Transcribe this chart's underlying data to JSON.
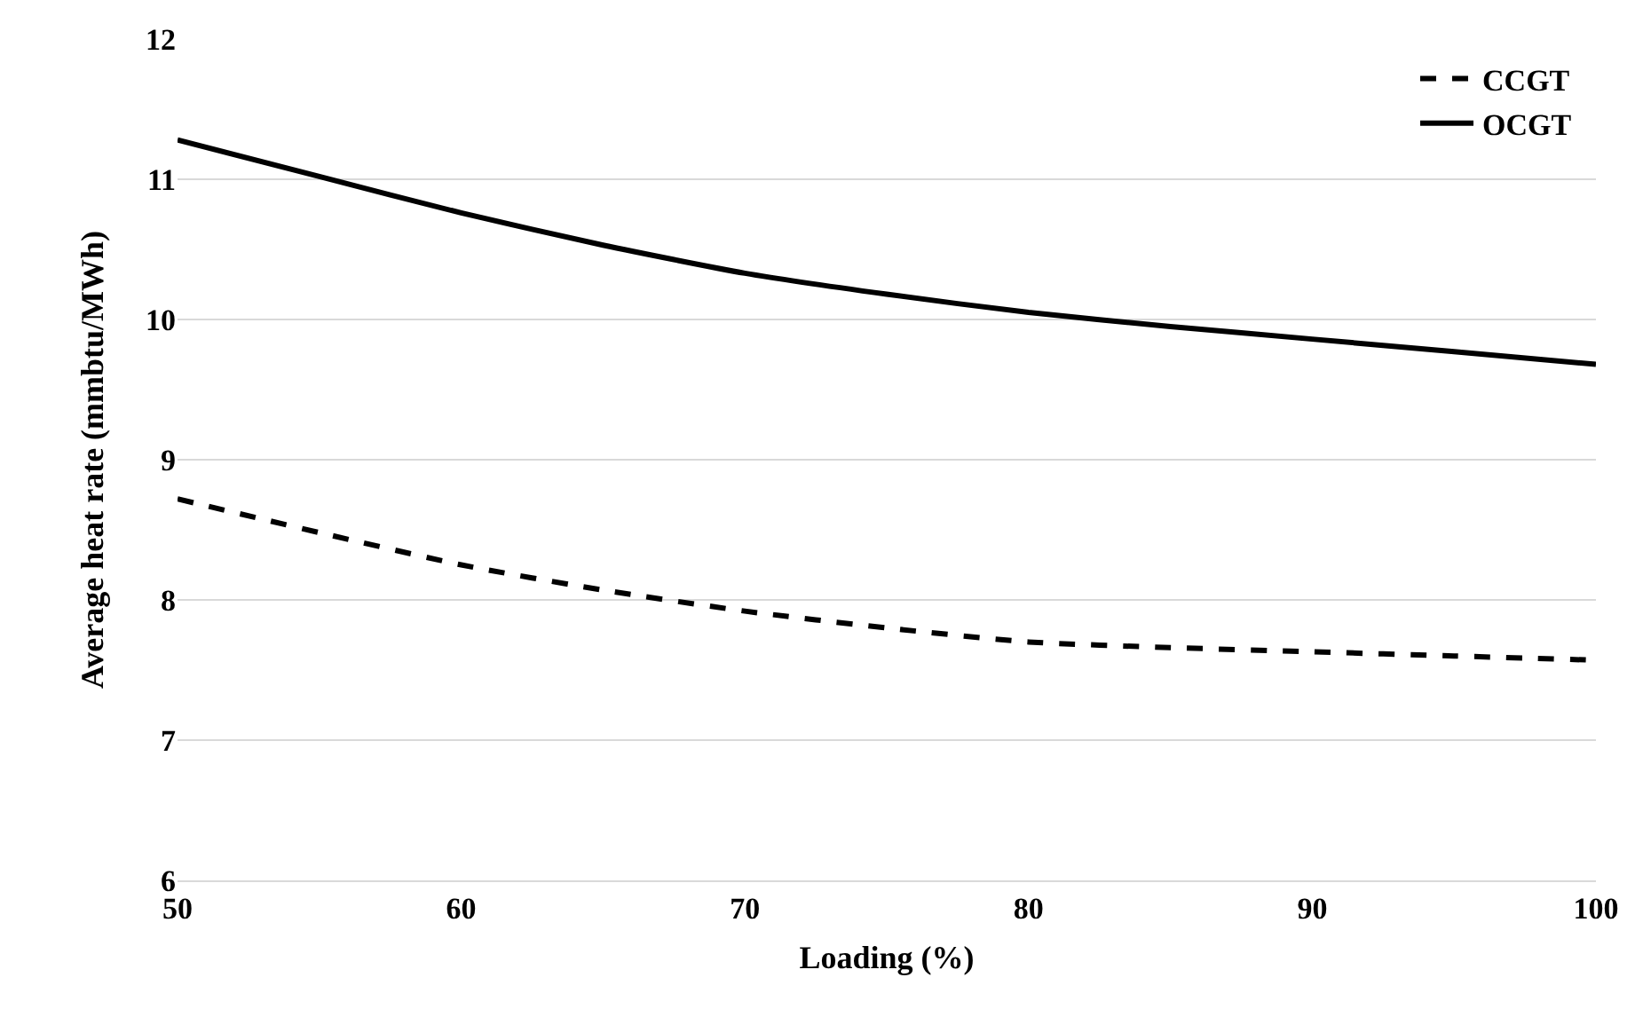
{
  "chart_data": {
    "type": "line",
    "xlabel": "Loading (%)",
    "ylabel": "Average heat rate (mmbtu/MWh)",
    "x": [
      50,
      55,
      60,
      65,
      70,
      75,
      80,
      85,
      90,
      95,
      100
    ],
    "series": [
      {
        "name": "CCGT",
        "color": "#000000",
        "line_style": "dashed",
        "values": [
          8.72,
          8.48,
          8.25,
          8.07,
          7.92,
          7.8,
          7.7,
          7.66,
          7.63,
          7.6,
          7.57
        ]
      },
      {
        "name": "OCGT",
        "color": "#000000",
        "line_style": "solid",
        "values": [
          11.28,
          11.02,
          10.76,
          10.53,
          10.33,
          10.18,
          10.05,
          9.95,
          9.86,
          9.77,
          9.68
        ]
      }
    ],
    "xlim": [
      50,
      100
    ],
    "xticks": [
      50,
      60,
      70,
      80,
      90,
      100
    ],
    "ylim": [
      6,
      12
    ],
    "yticks": [
      6,
      7,
      8,
      9,
      10,
      11,
      12
    ],
    "grid": "y",
    "legend": "top right",
    "marker": "none"
  }
}
